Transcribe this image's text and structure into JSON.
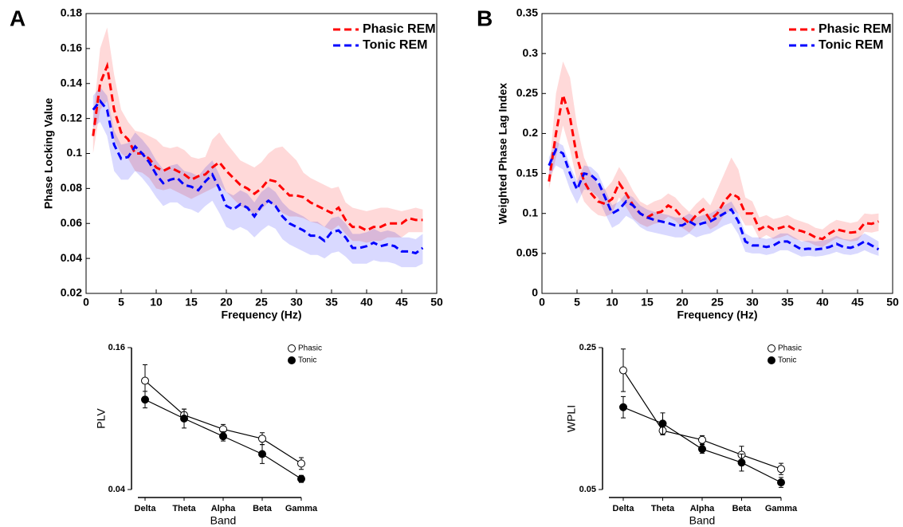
{
  "chart_data": [
    {
      "type": "line",
      "label": "A",
      "xlabel": "Frequency (Hz)",
      "ylabel": "Phase Locking Value",
      "xlim": [
        0,
        50
      ],
      "xticks": [
        0,
        5,
        10,
        15,
        20,
        25,
        30,
        35,
        40,
        45,
        50
      ],
      "ylim": [
        0.02,
        0.18
      ],
      "yticks": [
        0.02,
        0.04,
        0.06,
        0.08,
        0.1,
        0.12,
        0.14,
        0.16,
        0.18
      ],
      "legend": "upper right",
      "x": [
        1,
        2,
        3,
        4,
        5,
        6,
        7,
        8,
        9,
        10,
        11,
        12,
        13,
        14,
        15,
        16,
        17,
        18,
        19,
        20,
        21,
        22,
        23,
        24,
        25,
        26,
        27,
        28,
        29,
        30,
        31,
        32,
        33,
        34,
        35,
        36,
        37,
        38,
        39,
        40,
        41,
        42,
        43,
        44,
        45,
        46,
        47,
        48
      ],
      "series": [
        {
          "name": "Phasic REM",
          "color": "#ff0000",
          "band_color": "#ffd9d9",
          "values": [
            0.11,
            0.14,
            0.15,
            0.125,
            0.112,
            0.108,
            0.1,
            0.1,
            0.097,
            0.092,
            0.09,
            0.092,
            0.09,
            0.088,
            0.085,
            0.087,
            0.088,
            0.092,
            0.095,
            0.09,
            0.086,
            0.082,
            0.08,
            0.077,
            0.08,
            0.085,
            0.084,
            0.08,
            0.076,
            0.076,
            0.075,
            0.072,
            0.07,
            0.068,
            0.066,
            0.069,
            0.062,
            0.058,
            0.058,
            0.056,
            0.058,
            0.058,
            0.06,
            0.06,
            0.06,
            0.063,
            0.062,
            0.062
          ],
          "upper": [
            0.12,
            0.16,
            0.172,
            0.145,
            0.125,
            0.118,
            0.113,
            0.112,
            0.11,
            0.108,
            0.104,
            0.103,
            0.104,
            0.102,
            0.098,
            0.097,
            0.098,
            0.108,
            0.112,
            0.106,
            0.101,
            0.096,
            0.094,
            0.092,
            0.095,
            0.1,
            0.103,
            0.104,
            0.1,
            0.096,
            0.089,
            0.086,
            0.084,
            0.082,
            0.08,
            0.081,
            0.072,
            0.069,
            0.068,
            0.067,
            0.068,
            0.069,
            0.069,
            0.068,
            0.067,
            0.068,
            0.069,
            0.068
          ],
          "lower": [
            0.1,
            0.125,
            0.13,
            0.108,
            0.1,
            0.097,
            0.09,
            0.089,
            0.086,
            0.08,
            0.079,
            0.08,
            0.078,
            0.076,
            0.074,
            0.076,
            0.078,
            0.08,
            0.082,
            0.078,
            0.074,
            0.07,
            0.068,
            0.065,
            0.068,
            0.072,
            0.07,
            0.066,
            0.064,
            0.064,
            0.063,
            0.061,
            0.06,
            0.058,
            0.056,
            0.059,
            0.054,
            0.05,
            0.05,
            0.049,
            0.05,
            0.05,
            0.052,
            0.052,
            0.052,
            0.055,
            0.055,
            0.055
          ]
        },
        {
          "name": "Tonic REM",
          "color": "#0000ff",
          "band_color": "#d9d9ff",
          "values": [
            0.125,
            0.13,
            0.125,
            0.105,
            0.097,
            0.098,
            0.104,
            0.1,
            0.095,
            0.088,
            0.083,
            0.085,
            0.086,
            0.082,
            0.081,
            0.079,
            0.084,
            0.088,
            0.08,
            0.07,
            0.068,
            0.071,
            0.069,
            0.064,
            0.07,
            0.073,
            0.07,
            0.064,
            0.06,
            0.058,
            0.056,
            0.053,
            0.053,
            0.05,
            0.055,
            0.056,
            0.052,
            0.046,
            0.046,
            0.047,
            0.049,
            0.047,
            0.048,
            0.047,
            0.044,
            0.044,
            0.043,
            0.046
          ],
          "upper": [
            0.133,
            0.138,
            0.133,
            0.113,
            0.105,
            0.106,
            0.112,
            0.108,
            0.103,
            0.096,
            0.091,
            0.093,
            0.094,
            0.09,
            0.089,
            0.087,
            0.092,
            0.096,
            0.088,
            0.078,
            0.076,
            0.079,
            0.077,
            0.072,
            0.078,
            0.081,
            0.078,
            0.072,
            0.068,
            0.066,
            0.064,
            0.061,
            0.061,
            0.058,
            0.063,
            0.064,
            0.06,
            0.054,
            0.054,
            0.055,
            0.057,
            0.055,
            0.056,
            0.055,
            0.052,
            0.052,
            0.051,
            0.054
          ],
          "lower": [
            0.115,
            0.118,
            0.11,
            0.09,
            0.085,
            0.085,
            0.09,
            0.086,
            0.081,
            0.075,
            0.07,
            0.072,
            0.072,
            0.069,
            0.068,
            0.066,
            0.07,
            0.073,
            0.066,
            0.058,
            0.056,
            0.058,
            0.056,
            0.052,
            0.056,
            0.059,
            0.057,
            0.051,
            0.048,
            0.046,
            0.044,
            0.042,
            0.042,
            0.04,
            0.043,
            0.044,
            0.041,
            0.037,
            0.037,
            0.037,
            0.039,
            0.038,
            0.038,
            0.037,
            0.035,
            0.035,
            0.035,
            0.037
          ]
        }
      ]
    },
    {
      "type": "line",
      "label": "B",
      "xlabel": "Frequency (Hz)",
      "ylabel": "Weighted Phase Lag Index",
      "xlim": [
        0,
        50
      ],
      "xticks": [
        0,
        5,
        10,
        15,
        20,
        25,
        30,
        35,
        40,
        45,
        50
      ],
      "ylim": [
        0,
        0.35
      ],
      "yticks": [
        0,
        0.05,
        0.1,
        0.15,
        0.2,
        0.25,
        0.3,
        0.35
      ],
      "legend": "upper right",
      "x": [
        1,
        2,
        3,
        4,
        5,
        6,
        7,
        8,
        9,
        10,
        11,
        12,
        13,
        14,
        15,
        16,
        17,
        18,
        19,
        20,
        21,
        22,
        23,
        24,
        25,
        26,
        27,
        28,
        29,
        30,
        31,
        32,
        33,
        34,
        35,
        36,
        37,
        38,
        39,
        40,
        41,
        42,
        43,
        44,
        45,
        46,
        47,
        48
      ],
      "series": [
        {
          "name": "Phasic REM",
          "color": "#ff0000",
          "band_color": "#ffd9d9",
          "values": [
            0.14,
            0.2,
            0.248,
            0.22,
            0.17,
            0.14,
            0.125,
            0.115,
            0.112,
            0.118,
            0.138,
            0.125,
            0.11,
            0.1,
            0.095,
            0.1,
            0.102,
            0.11,
            0.105,
            0.095,
            0.088,
            0.098,
            0.105,
            0.092,
            0.1,
            0.115,
            0.125,
            0.12,
            0.1,
            0.1,
            0.08,
            0.085,
            0.08,
            0.082,
            0.085,
            0.08,
            0.078,
            0.075,
            0.07,
            0.068,
            0.075,
            0.08,
            0.078,
            0.076,
            0.077,
            0.088,
            0.087,
            0.09
          ],
          "upper": [
            0.15,
            0.25,
            0.29,
            0.27,
            0.21,
            0.17,
            0.15,
            0.135,
            0.13,
            0.14,
            0.158,
            0.145,
            0.128,
            0.115,
            0.11,
            0.115,
            0.118,
            0.125,
            0.12,
            0.11,
            0.102,
            0.112,
            0.12,
            0.11,
            0.13,
            0.15,
            0.17,
            0.155,
            0.12,
            0.115,
            0.095,
            0.098,
            0.093,
            0.095,
            0.098,
            0.093,
            0.09,
            0.087,
            0.082,
            0.08,
            0.087,
            0.092,
            0.09,
            0.088,
            0.09,
            0.1,
            0.099,
            0.1
          ],
          "lower": [
            0.13,
            0.17,
            0.21,
            0.18,
            0.14,
            0.115,
            0.105,
            0.098,
            0.096,
            0.1,
            0.12,
            0.108,
            0.094,
            0.087,
            0.083,
            0.087,
            0.089,
            0.096,
            0.091,
            0.082,
            0.076,
            0.085,
            0.092,
            0.08,
            0.085,
            0.098,
            0.105,
            0.1,
            0.085,
            0.085,
            0.068,
            0.073,
            0.068,
            0.07,
            0.073,
            0.068,
            0.066,
            0.064,
            0.06,
            0.058,
            0.064,
            0.069,
            0.067,
            0.065,
            0.066,
            0.077,
            0.076,
            0.078
          ]
        },
        {
          "name": "Tonic REM",
          "color": "#0000ff",
          "band_color": "#d9d9ff",
          "values": [
            0.16,
            0.18,
            0.175,
            0.15,
            0.13,
            0.15,
            0.148,
            0.14,
            0.12,
            0.1,
            0.105,
            0.115,
            0.11,
            0.1,
            0.095,
            0.092,
            0.09,
            0.088,
            0.085,
            0.085,
            0.09,
            0.085,
            0.088,
            0.09,
            0.095,
            0.1,
            0.105,
            0.09,
            0.065,
            0.06,
            0.06,
            0.058,
            0.06,
            0.065,
            0.065,
            0.06,
            0.055,
            0.056,
            0.055,
            0.056,
            0.058,
            0.062,
            0.058,
            0.057,
            0.06,
            0.065,
            0.06,
            0.055
          ],
          "upper": [
            0.17,
            0.19,
            0.185,
            0.16,
            0.14,
            0.16,
            0.158,
            0.15,
            0.13,
            0.11,
            0.115,
            0.125,
            0.12,
            0.11,
            0.105,
            0.102,
            0.1,
            0.098,
            0.095,
            0.095,
            0.1,
            0.095,
            0.098,
            0.1,
            0.105,
            0.11,
            0.115,
            0.1,
            0.075,
            0.07,
            0.07,
            0.068,
            0.07,
            0.075,
            0.075,
            0.07,
            0.065,
            0.066,
            0.065,
            0.066,
            0.068,
            0.072,
            0.068,
            0.067,
            0.07,
            0.075,
            0.07,
            0.065
          ],
          "lower": [
            0.145,
            0.16,
            0.155,
            0.13,
            0.112,
            0.13,
            0.128,
            0.12,
            0.1,
            0.082,
            0.087,
            0.097,
            0.092,
            0.083,
            0.078,
            0.076,
            0.074,
            0.072,
            0.07,
            0.07,
            0.075,
            0.07,
            0.073,
            0.075,
            0.08,
            0.085,
            0.088,
            0.074,
            0.052,
            0.05,
            0.05,
            0.048,
            0.05,
            0.054,
            0.054,
            0.05,
            0.046,
            0.047,
            0.046,
            0.047,
            0.049,
            0.052,
            0.049,
            0.048,
            0.05,
            0.054,
            0.05,
            0.047
          ]
        }
      ]
    },
    {
      "type": "errorbar",
      "xlabel": "Band",
      "ylabel": "PLV",
      "categories": [
        "Delta",
        "Theta",
        "Alpha",
        "Beta",
        "Gamma"
      ],
      "ylim": [
        0.04,
        0.16
      ],
      "yticks": [
        0.04,
        0.16
      ],
      "legend": "upper right",
      "series": [
        {
          "name": "Phasic",
          "color": "#ffffff",
          "values": [
            0.132,
            0.103,
            0.091,
            0.083,
            0.062
          ],
          "errors": [
            0.0135,
            0.005,
            0.004,
            0.005,
            0.005
          ]
        },
        {
          "name": "Tonic",
          "color": "#000000",
          "values": [
            0.116,
            0.1,
            0.085,
            0.07,
            0.049
          ],
          "errors": [
            0.007,
            0.008,
            0.004,
            0.008,
            0.003
          ]
        }
      ]
    },
    {
      "type": "errorbar",
      "xlabel": "Band",
      "ylabel": "WPLI",
      "categories": [
        "Delta",
        "Theta",
        "Alpha",
        "Beta",
        "Gamma"
      ],
      "ylim": [
        0.05,
        0.25
      ],
      "yticks": [
        0.05,
        0.25
      ],
      "legend": "upper right",
      "series": [
        {
          "name": "Phasic",
          "color": "#ffffff",
          "values": [
            0.218,
            0.133,
            0.12,
            0.099,
            0.079
          ],
          "errors": [
            0.03,
            0.006,
            0.006,
            0.012,
            0.008
          ]
        },
        {
          "name": "Tonic",
          "color": "#000000",
          "values": [
            0.166,
            0.143,
            0.107,
            0.088,
            0.06
          ],
          "errors": [
            0.015,
            0.015,
            0.006,
            0.012,
            0.007
          ]
        }
      ]
    }
  ]
}
